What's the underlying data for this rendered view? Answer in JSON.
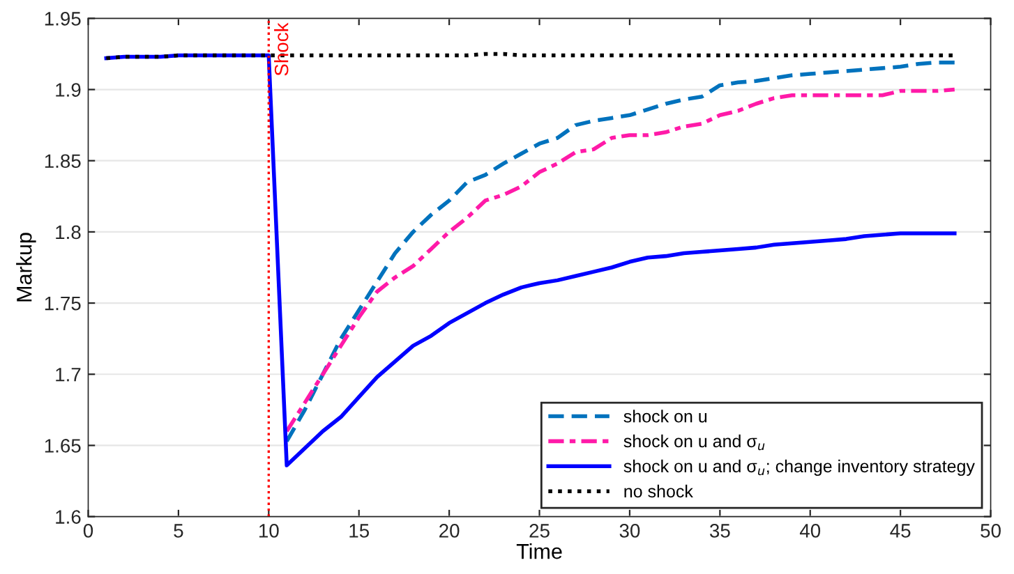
{
  "chart_data": {
    "type": "line",
    "xlabel": "Time",
    "ylabel": "Markup",
    "x": [
      1,
      2,
      3,
      4,
      5,
      6,
      7,
      8,
      9,
      10,
      11,
      12,
      13,
      14,
      15,
      16,
      17,
      18,
      19,
      20,
      21,
      22,
      23,
      24,
      25,
      26,
      27,
      28,
      29,
      30,
      31,
      32,
      33,
      34,
      35,
      36,
      37,
      38,
      39,
      40,
      41,
      42,
      43,
      44,
      45,
      46,
      47,
      48
    ],
    "series": [
      {
        "name": "shock on u",
        "color": "#0072bd",
        "line_style": "dashed",
        "values": [
          null,
          null,
          null,
          null,
          null,
          null,
          null,
          null,
          null,
          null,
          1.653,
          1.675,
          1.7,
          1.725,
          1.745,
          1.765,
          1.785,
          1.8,
          1.812,
          1.822,
          1.835,
          1.84,
          1.848,
          1.855,
          1.862,
          1.866,
          1.875,
          1.878,
          1.88,
          1.882,
          1.886,
          1.89,
          1.893,
          1.895,
          1.903,
          1.905,
          1.906,
          1.908,
          1.91,
          1.911,
          1.912,
          1.913,
          1.914,
          1.915,
          1.916,
          1.918,
          1.919,
          1.919
        ]
      },
      {
        "name": "shock on u and σ$_{u}$",
        "color": "#ff1aa8",
        "line_style": "dashdot",
        "values": [
          null,
          null,
          null,
          null,
          null,
          null,
          null,
          null,
          null,
          null,
          1.66,
          1.68,
          1.7,
          1.72,
          1.74,
          1.758,
          1.768,
          1.776,
          1.788,
          1.8,
          1.81,
          1.822,
          1.826,
          1.832,
          1.842,
          1.848,
          1.856,
          1.858,
          1.866,
          1.868,
          1.868,
          1.87,
          1.874,
          1.876,
          1.882,
          1.885,
          1.89,
          1.894,
          1.896,
          1.896,
          1.896,
          1.896,
          1.896,
          1.896,
          1.899,
          1.899,
          1.899,
          1.9
        ]
      },
      {
        "name": "shock on u and σ$_{u}$; change inventory strategy",
        "color": "#0000ff",
        "line_style": "solid",
        "values": [
          1.922,
          1.923,
          1.923,
          1.923,
          1.924,
          1.924,
          1.924,
          1.924,
          1.924,
          1.924,
          1.636,
          1.648,
          1.66,
          1.67,
          1.684,
          1.698,
          1.709,
          1.72,
          1.727,
          1.736,
          1.743,
          1.75,
          1.756,
          1.761,
          1.764,
          1.766,
          1.769,
          1.772,
          1.775,
          1.779,
          1.782,
          1.783,
          1.785,
          1.786,
          1.787,
          1.788,
          1.789,
          1.791,
          1.792,
          1.793,
          1.794,
          1.795,
          1.797,
          1.798,
          1.799,
          1.799,
          1.799,
          1.799
        ]
      },
      {
        "name": "no shock",
        "color": "#000000",
        "line_style": "dotted",
        "values": [
          1.922,
          1.923,
          1.923,
          1.923,
          1.924,
          1.924,
          1.924,
          1.924,
          1.924,
          1.924,
          1.924,
          1.924,
          1.924,
          1.924,
          1.924,
          1.924,
          1.924,
          1.924,
          1.924,
          1.924,
          1.924,
          1.925,
          1.925,
          1.924,
          1.924,
          1.924,
          1.924,
          1.924,
          1.924,
          1.924,
          1.924,
          1.924,
          1.924,
          1.924,
          1.924,
          1.924,
          1.924,
          1.924,
          1.924,
          1.924,
          1.924,
          1.924,
          1.924,
          1.924,
          1.924,
          1.924,
          1.924,
          1.924
        ]
      }
    ],
    "xlim": [
      0,
      50
    ],
    "xticks": [
      0,
      5,
      10,
      15,
      20,
      25,
      30,
      35,
      40,
      45,
      50
    ],
    "ylim": [
      1.6,
      1.95
    ],
    "yticks": [
      1.6,
      1.65,
      1.7,
      1.75,
      1.8,
      1.85,
      1.9,
      1.95
    ],
    "ref_lines": [
      {
        "axis": "x",
        "value": 10,
        "label": "Shock",
        "color": "#ff0000",
        "line_style": "dotted"
      }
    ],
    "grid": "y",
    "legend": "bottom right",
    "marker": "none"
  }
}
